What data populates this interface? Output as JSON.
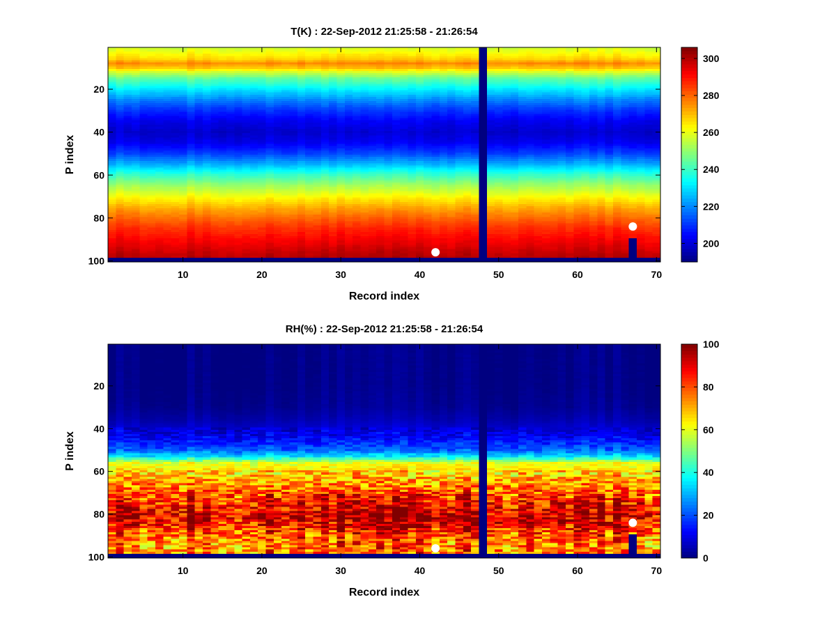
{
  "chart_data": [
    {
      "type": "heatmap",
      "title": "T(K) : 22-Sep-2012 21:25:58 - 21:26:54",
      "xlabel": "Record index",
      "ylabel": "P index",
      "x_range": [
        1,
        70
      ],
      "y_range": [
        1,
        100
      ],
      "y_reversed": true,
      "x_ticks": [
        "10",
        "20",
        "30",
        "40",
        "50",
        "60",
        "70"
      ],
      "y_ticks": [
        "20",
        "40",
        "60",
        "80",
        "100"
      ],
      "colormap": "jet",
      "colorbar": {
        "range": [
          190,
          306
        ],
        "ticks": [
          "200",
          "220",
          "240",
          "260",
          "280",
          "300"
        ]
      },
      "profile": [
        {
          "p": 1,
          "value": 258
        },
        {
          "p": 3,
          "value": 262
        },
        {
          "p": 6,
          "value": 268
        },
        {
          "p": 8,
          "value": 276
        },
        {
          "p": 10,
          "value": 270
        },
        {
          "p": 12,
          "value": 258
        },
        {
          "p": 15,
          "value": 245
        },
        {
          "p": 20,
          "value": 232
        },
        {
          "p": 25,
          "value": 220
        },
        {
          "p": 30,
          "value": 210
        },
        {
          "p": 35,
          "value": 203
        },
        {
          "p": 40,
          "value": 199
        },
        {
          "p": 45,
          "value": 203
        },
        {
          "p": 50,
          "value": 212
        },
        {
          "p": 55,
          "value": 225
        },
        {
          "p": 60,
          "value": 240
        },
        {
          "p": 65,
          "value": 252
        },
        {
          "p": 70,
          "value": 262
        },
        {
          "p": 75,
          "value": 272
        },
        {
          "p": 80,
          "value": 280
        },
        {
          "p": 85,
          "value": 287
        },
        {
          "p": 90,
          "value": 292
        },
        {
          "p": 95,
          "value": 297
        },
        {
          "p": 98,
          "value": 300
        }
      ],
      "fill_value": 190,
      "bottom_row_fill_from_p": 99,
      "missing_columns": [
        48
      ],
      "partial_columns": [
        {
          "record": 67,
          "from_p": 90
        }
      ],
      "markers": [
        {
          "record": 42,
          "p": 96
        },
        {
          "record": 67,
          "p": 84
        }
      ]
    },
    {
      "type": "heatmap",
      "title": "RH(%) : 22-Sep-2012 21:25:58 - 21:26:54",
      "xlabel": "Record index",
      "ylabel": "P index",
      "x_range": [
        1,
        70
      ],
      "y_range": [
        1,
        100
      ],
      "y_reversed": true,
      "x_ticks": [
        "10",
        "20",
        "30",
        "40",
        "50",
        "60",
        "70"
      ],
      "y_ticks": [
        "20",
        "40",
        "60",
        "80",
        "100"
      ],
      "colormap": "jet",
      "colorbar": {
        "range": [
          0,
          100
        ],
        "ticks": [
          "0",
          "20",
          "40",
          "60",
          "80",
          "100"
        ]
      },
      "profile": [
        {
          "p": 1,
          "value": 1
        },
        {
          "p": 20,
          "value": 1
        },
        {
          "p": 30,
          "value": 2
        },
        {
          "p": 36,
          "value": 5
        },
        {
          "p": 40,
          "value": 8
        },
        {
          "p": 45,
          "value": 13
        },
        {
          "p": 50,
          "value": 22
        },
        {
          "p": 53,
          "value": 35
        },
        {
          "p": 56,
          "value": 60
        },
        {
          "p": 60,
          "value": 66
        },
        {
          "p": 65,
          "value": 72
        },
        {
          "p": 70,
          "value": 80
        },
        {
          "p": 75,
          "value": 88
        },
        {
          "p": 80,
          "value": 94
        },
        {
          "p": 85,
          "value": 90
        },
        {
          "p": 90,
          "value": 80
        },
        {
          "p": 95,
          "value": 75
        },
        {
          "p": 98,
          "value": 78
        }
      ],
      "fill_value": 0,
      "bottom_row_fill_from_p": 99,
      "missing_columns": [
        48
      ],
      "partial_columns": [
        {
          "record": 67,
          "from_p": 90
        }
      ],
      "markers": [
        {
          "record": 42,
          "p": 96
        },
        {
          "record": 67,
          "p": 84
        }
      ]
    }
  ]
}
